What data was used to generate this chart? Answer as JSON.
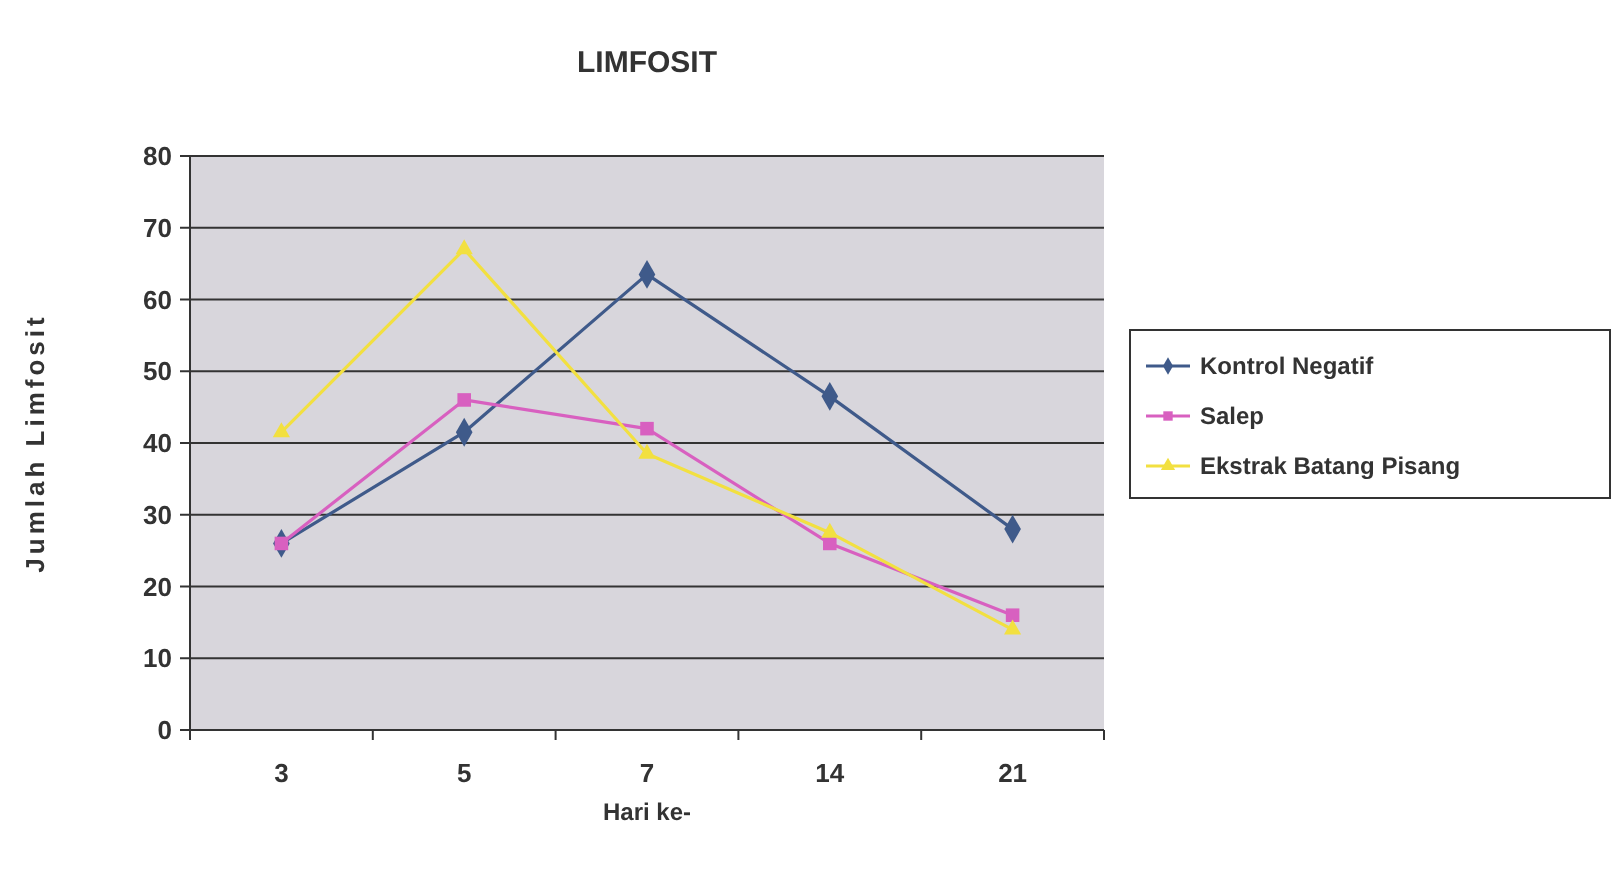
{
  "chart_data": {
    "type": "line",
    "title": "LIMFOSIT",
    "xlabel": "Hari ke-",
    "ylabel": "Jumlah Limfosit",
    "categories": [
      "3",
      "5",
      "7",
      "14",
      "21"
    ],
    "ylim": [
      0,
      80
    ],
    "yticks": [
      0,
      10,
      20,
      30,
      40,
      50,
      60,
      70,
      80
    ],
    "grid": "y",
    "legend": "right",
    "series": [
      {
        "name": "Kontrol Negatif",
        "color": "#3f5a8a",
        "marker": "diamond",
        "values": [
          26,
          41.5,
          63.5,
          46.5,
          28
        ]
      },
      {
        "name": "Salep",
        "color": "#d860c0",
        "marker": "square",
        "values": [
          26,
          46,
          42,
          26,
          16
        ]
      },
      {
        "name": "Ekstrak Batang Pisang",
        "color": "#f2e040",
        "marker": "triangle",
        "values": [
          41.5,
          67,
          38.5,
          27.5,
          14
        ]
      }
    ]
  }
}
